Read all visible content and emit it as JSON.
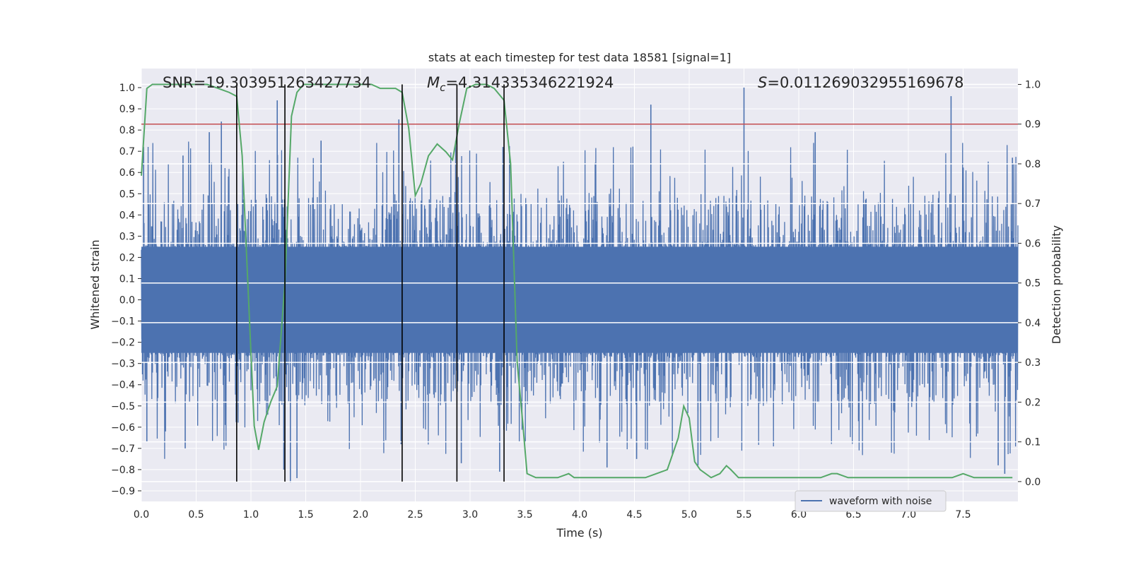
{
  "chart_data": {
    "type": "line",
    "title": "stats at each timestep for test data 18581 [signal=1]",
    "xlabel": "Time (s)",
    "ylabel": "Whitened strain",
    "y2label": "Detection probability",
    "xlim": [
      0.0,
      8.0
    ],
    "ylim": [
      -0.95,
      1.09
    ],
    "y2lim": [
      -0.05,
      1.04
    ],
    "xticks": [
      "0.0",
      "0.5",
      "1.0",
      "1.5",
      "2.0",
      "2.5",
      "3.0",
      "3.5",
      "4.0",
      "4.5",
      "5.0",
      "5.5",
      "6.0",
      "6.5",
      "7.0",
      "7.5"
    ],
    "yticks": [
      "1.0",
      "0.9",
      "0.8",
      "0.7",
      "0.6",
      "0.5",
      "0.4",
      "0.3",
      "0.2",
      "0.1",
      "0.0",
      "−0.1",
      "−0.2",
      "−0.3",
      "−0.4",
      "−0.5",
      "−0.6",
      "−0.7",
      "−0.8",
      "−0.9"
    ],
    "y2ticks": [
      "1.0",
      "0.9",
      "0.8",
      "0.7",
      "0.6",
      "0.5",
      "0.4",
      "0.3",
      "0.2",
      "0.1",
      "0.0"
    ],
    "annotations": {
      "snr": "SNR=19.303951263427734",
      "mc": "=4.314335346221924",
      "s": "=0.011269032955169678"
    },
    "grid": true,
    "legend": {
      "placement": "lower-right",
      "entries": [
        "waveform with noise"
      ]
    },
    "colors": {
      "waveform": "#4c72b0",
      "probability": "#55a868",
      "threshold": "#c44e52",
      "event_lines": "#000000",
      "plot_bg": "#eaeaf2",
      "grid": "#ffffff"
    },
    "threshold_y2": 0.9,
    "event_lines_x": [
      0.87,
      1.31,
      2.38,
      2.88,
      3.31
    ],
    "waveform_envelope": {
      "core_amplitude": 0.25,
      "typical_peak": 0.5,
      "max": 1.0,
      "min": -0.87
    },
    "waveform_spikes": [
      {
        "x": 0.02,
        "y": 0.72
      },
      {
        "x": 0.05,
        "y": -0.67
      },
      {
        "x": 0.22,
        "y": -0.62
      },
      {
        "x": 0.38,
        "y": 0.68
      },
      {
        "x": 0.4,
        "y": -0.7
      },
      {
        "x": 0.62,
        "y": 0.79
      },
      {
        "x": 0.73,
        "y": 0.84
      },
      {
        "x": 1.24,
        "y": 0.94
      },
      {
        "x": 1.3,
        "y": -0.8
      },
      {
        "x": 1.36,
        "y": -0.86
      },
      {
        "x": 1.42,
        "y": -0.84
      },
      {
        "x": 1.64,
        "y": 0.75
      },
      {
        "x": 2.35,
        "y": 0.85
      },
      {
        "x": 2.37,
        "y": -0.68
      },
      {
        "x": 2.92,
        "y": -0.77
      },
      {
        "x": 3.27,
        "y": -0.81
      },
      {
        "x": 3.3,
        "y": 0.72
      },
      {
        "x": 4.25,
        "y": -0.79
      },
      {
        "x": 4.65,
        "y": 0.92
      },
      {
        "x": 4.52,
        "y": -0.75
      },
      {
        "x": 5.08,
        "y": -0.78
      },
      {
        "x": 5.5,
        "y": 1.0
      },
      {
        "x": 6.15,
        "y": 0.79
      },
      {
        "x": 7.39,
        "y": 0.96
      },
      {
        "x": 7.82,
        "y": -0.78
      },
      {
        "x": 7.88,
        "y": -0.82
      },
      {
        "x": 7.95,
        "y": 0.67
      }
    ],
    "series": [
      {
        "name": "waveform with noise",
        "axis": "left"
      },
      {
        "axis": "right",
        "x": [
          0.0,
          0.05,
          0.1,
          0.15,
          0.25,
          0.4,
          0.6,
          0.7,
          0.8,
          0.87,
          0.92,
          0.97,
          1.03,
          1.07,
          1.12,
          1.18,
          1.24,
          1.31,
          1.37,
          1.42,
          1.48,
          1.55,
          1.7,
          1.85,
          2.0,
          2.1,
          2.18,
          2.25,
          2.32,
          2.38,
          2.44,
          2.5,
          2.55,
          2.62,
          2.7,
          2.78,
          2.84,
          2.9,
          2.97,
          3.05,
          3.15,
          3.22,
          3.31,
          3.37,
          3.43,
          3.48,
          3.52,
          3.6,
          3.7,
          3.8,
          3.9,
          3.95,
          4.0,
          4.1,
          4.2,
          4.3,
          4.45,
          4.6,
          4.7,
          4.8,
          4.9,
          4.95,
          5.0,
          5.05,
          5.1,
          5.2,
          5.28,
          5.34,
          5.38,
          5.45,
          5.5,
          5.6,
          5.7,
          5.8,
          5.95,
          6.0,
          6.1,
          6.2,
          6.3,
          6.35,
          6.45,
          6.6,
          6.8,
          7.0,
          7.2,
          7.3,
          7.4,
          7.5,
          7.6,
          7.7,
          7.8,
          7.95
        ],
        "y": [
          0.77,
          0.99,
          1.0,
          1.0,
          1.0,
          1.0,
          1.0,
          0.99,
          0.98,
          0.97,
          0.82,
          0.51,
          0.14,
          0.08,
          0.15,
          0.2,
          0.24,
          0.5,
          0.92,
          0.98,
          1.0,
          1.0,
          1.0,
          1.0,
          1.0,
          1.0,
          0.99,
          0.99,
          0.99,
          0.98,
          0.89,
          0.72,
          0.75,
          0.82,
          0.85,
          0.83,
          0.81,
          0.9,
          0.99,
          1.0,
          1.0,
          0.99,
          0.96,
          0.8,
          0.3,
          0.15,
          0.02,
          0.01,
          0.01,
          0.01,
          0.02,
          0.01,
          0.01,
          0.01,
          0.01,
          0.01,
          0.01,
          0.01,
          0.02,
          0.03,
          0.11,
          0.19,
          0.16,
          0.05,
          0.03,
          0.01,
          0.02,
          0.04,
          0.03,
          0.01,
          0.01,
          0.01,
          0.01,
          0.01,
          0.01,
          0.01,
          0.01,
          0.01,
          0.02,
          0.02,
          0.01,
          0.01,
          0.01,
          0.01,
          0.01,
          0.01,
          0.01,
          0.02,
          0.01,
          0.01,
          0.01,
          0.01
        ]
      }
    ]
  }
}
